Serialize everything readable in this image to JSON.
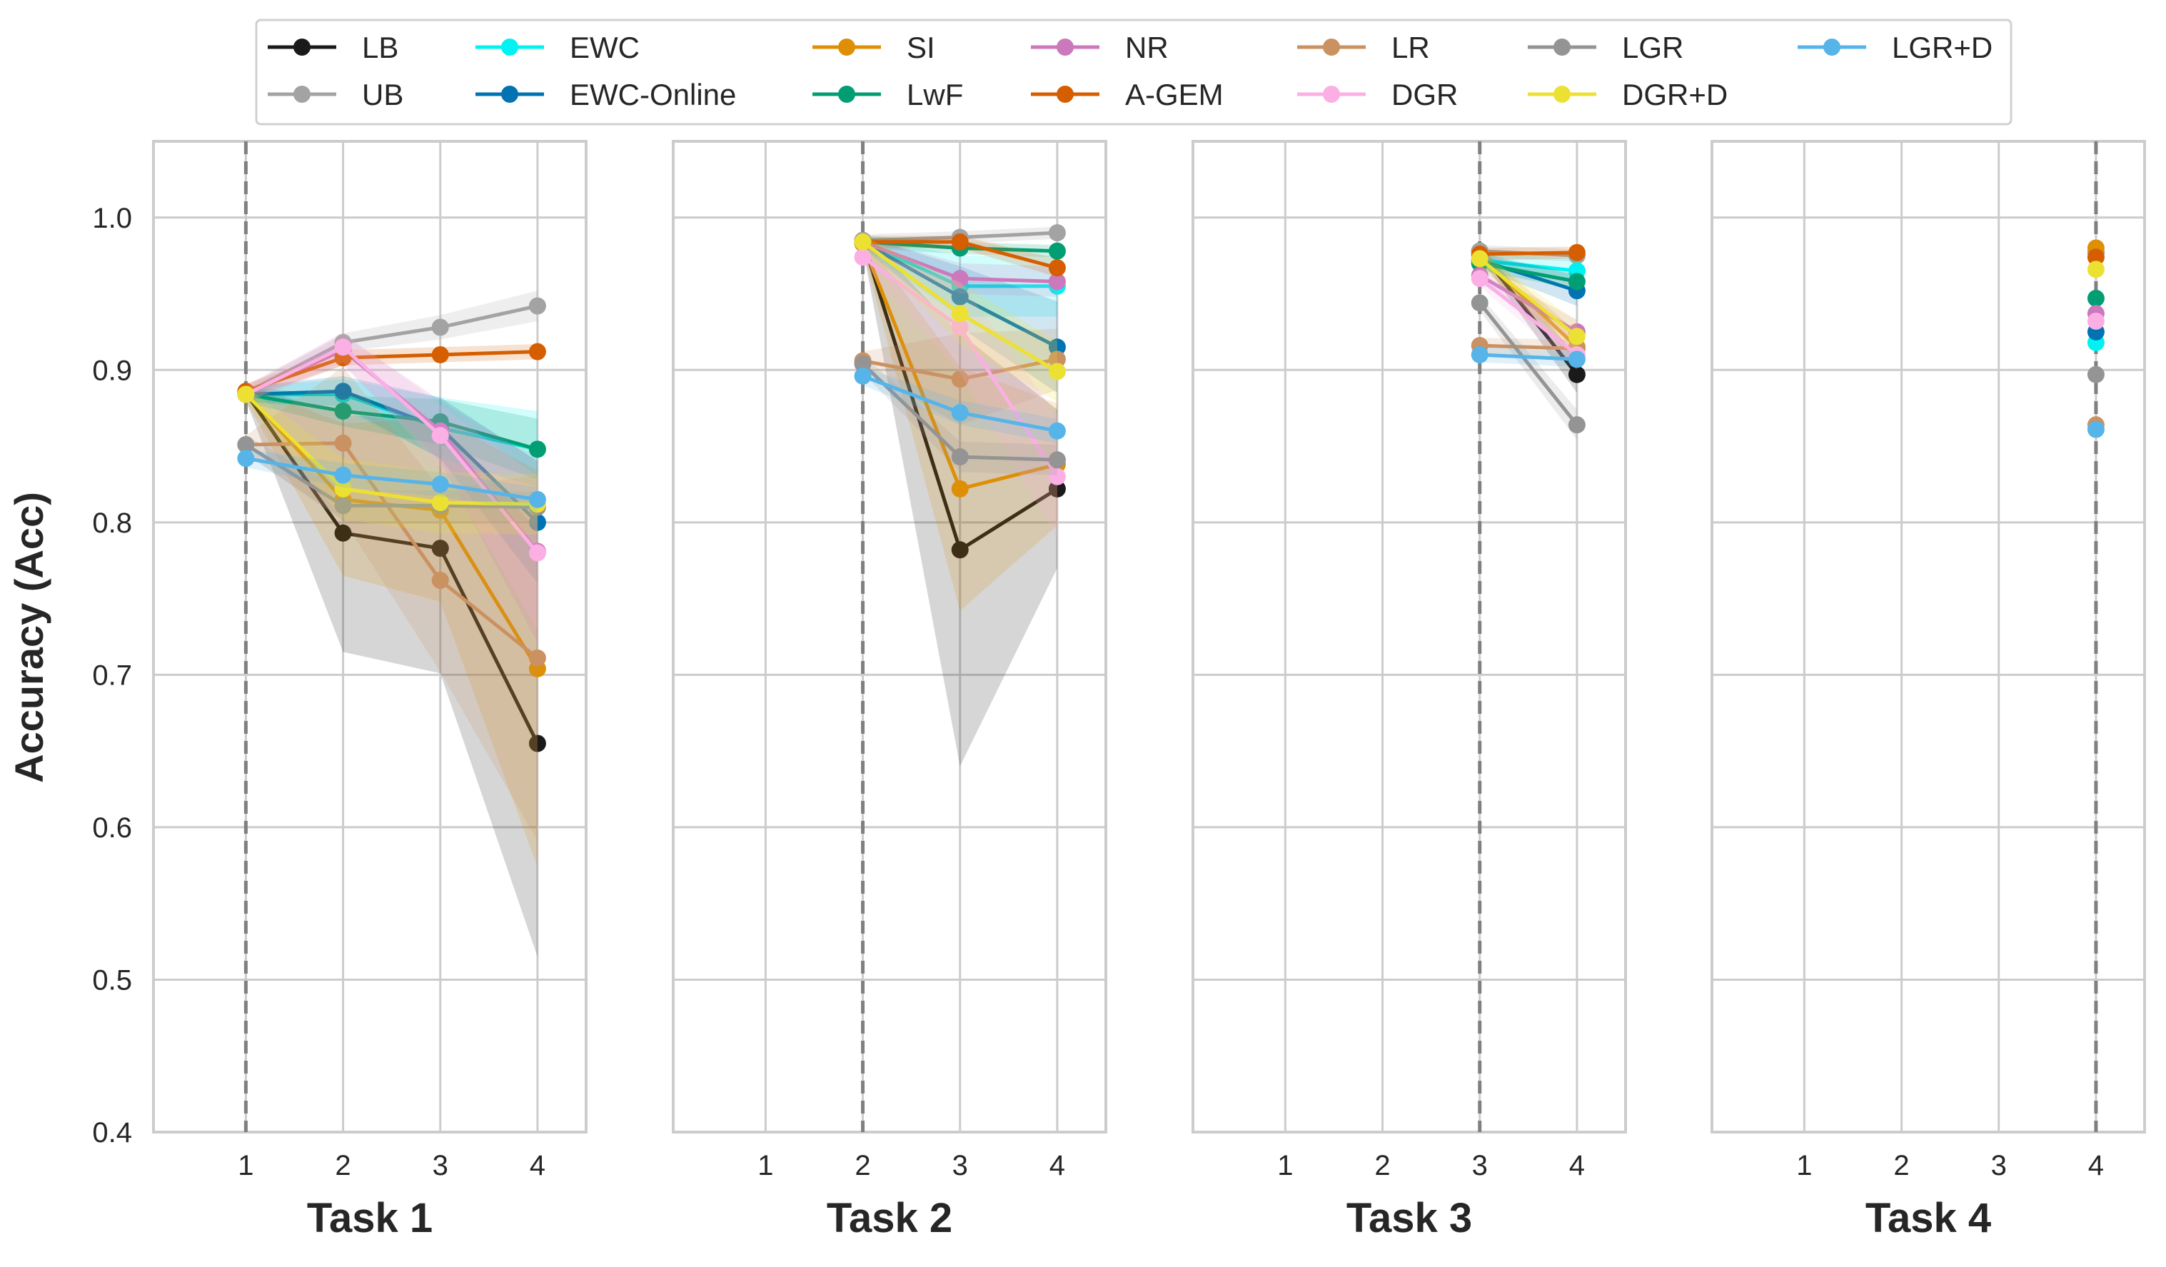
{
  "chart_data": {
    "type": "line",
    "ylabel": "Accuracy (Acc)",
    "ylim": [
      0.4,
      1.05
    ],
    "yticks": [
      0.4,
      0.5,
      0.6,
      0.7,
      0.8,
      0.9,
      1.0
    ],
    "ytick_labels": [
      "0.4",
      "0.5",
      "0.6",
      "0.7",
      "0.8",
      "0.9",
      "1.0"
    ],
    "xticks": [
      1,
      2,
      3,
      4
    ],
    "xtick_labels": [
      "1",
      "2",
      "3",
      "4"
    ],
    "xlim": [
      0.05,
      4.5
    ],
    "grid": true,
    "legend_position": "top-center",
    "legend_columns": 7,
    "panel_titles": [
      "Task 1",
      "Task 2",
      "Task 3",
      "Task 4"
    ],
    "panel_start": [
      1,
      2,
      3,
      4
    ],
    "series": [
      {
        "name": "LB",
        "color": "#1a1a1a",
        "panels": [
          [
            0.885,
            0.793,
            0.783,
            0.655
          ],
          [
            0.985,
            0.782,
            0.822
          ],
          [
            0.978,
            0.897
          ],
          [
            0.977
          ]
        ],
        "bands": [
          [
            0.005,
            0.078,
            0.082,
            0.14
          ],
          [
            0.005,
            0.142,
            0.052
          ],
          [
            0.004,
            0.012
          ],
          [
            0.004
          ]
        ]
      },
      {
        "name": "UB",
        "color": "#a3a3a3",
        "panels": [
          [
            0.885,
            0.918,
            0.928,
            0.942
          ],
          [
            0.985,
            0.987,
            0.99
          ],
          [
            0.978,
            0.975
          ],
          [
            0.977
          ]
        ],
        "bands": [
          [
            0.005,
            0.006,
            0.008,
            0.01
          ],
          [
            0.004,
            0.004,
            0.004
          ],
          [
            0.004,
            0.004
          ],
          [
            0.004
          ]
        ]
      },
      {
        "name": "EWC",
        "color": "#00f2f2",
        "panels": [
          [
            0.884,
            0.884,
            0.862,
            0.848
          ],
          [
            0.984,
            0.955,
            0.955
          ],
          [
            0.972,
            0.965
          ],
          [
            0.918
          ]
        ],
        "bands": [
          [
            0.005,
            0.01,
            0.02,
            0.025
          ],
          [
            0.004,
            0.02,
            0.02
          ],
          [
            0.005,
            0.008
          ],
          [
            0.005
          ]
        ]
      },
      {
        "name": "EWC-Online",
        "color": "#0173b2",
        "panels": [
          [
            0.884,
            0.886,
            0.862,
            0.8
          ],
          [
            0.984,
            0.948,
            0.915
          ],
          [
            0.972,
            0.952
          ],
          [
            0.925
          ]
        ],
        "bands": [
          [
            0.005,
            0.01,
            0.02,
            0.04
          ],
          [
            0.004,
            0.02,
            0.03
          ],
          [
            0.005,
            0.01
          ],
          [
            0.005
          ]
        ]
      },
      {
        "name": "SI",
        "color": "#de8f05",
        "panels": [
          [
            0.885,
            0.815,
            0.808,
            0.704
          ],
          [
            0.983,
            0.822,
            0.838
          ],
          [
            0.975,
            0.915
          ],
          [
            0.98
          ]
        ],
        "bands": [
          [
            0.005,
            0.05,
            0.06,
            0.13
          ],
          [
            0.005,
            0.08,
            0.04
          ],
          [
            0.005,
            0.01
          ],
          [
            0.004
          ]
        ]
      },
      {
        "name": "LwF",
        "color": "#029e73",
        "panels": [
          [
            0.884,
            0.873,
            0.866,
            0.848
          ],
          [
            0.984,
            0.98,
            0.978
          ],
          [
            0.97,
            0.958
          ],
          [
            0.947
          ]
        ],
        "bands": [
          [
            0.005,
            0.01,
            0.015,
            0.02
          ],
          [
            0.004,
            0.004,
            0.004
          ],
          [
            0.005,
            0.005
          ],
          [
            0.004
          ]
        ]
      },
      {
        "name": "NR",
        "color": "#cc78bc",
        "panels": [
          [
            0.884,
            0.913,
            0.86,
            0.781
          ],
          [
            0.984,
            0.96,
            0.958
          ],
          [
            0.962,
            0.925
          ],
          [
            0.937
          ]
        ],
        "bands": [
          [
            0.005,
            0.01,
            0.02,
            0.06
          ],
          [
            0.004,
            0.01,
            0.01
          ],
          [
            0.005,
            0.008
          ],
          [
            0.004
          ]
        ]
      },
      {
        "name": "A-GEM",
        "color": "#d55e00",
        "panels": [
          [
            0.886,
            0.908,
            0.91,
            0.912
          ],
          [
            0.984,
            0.984,
            0.967
          ],
          [
            0.976,
            0.977
          ],
          [
            0.974
          ]
        ],
        "bands": [
          [
            0.005,
            0.005,
            0.005,
            0.005
          ],
          [
            0.004,
            0.004,
            0.006
          ],
          [
            0.004,
            0.004
          ],
          [
            0.004
          ]
        ]
      },
      {
        "name": "LR",
        "color": "#ca9161",
        "panels": [
          [
            0.851,
            0.852,
            0.762,
            0.711
          ],
          [
            0.906,
            0.894,
            0.907
          ],
          [
            0.916,
            0.914
          ],
          [
            0.864
          ]
        ],
        "bands": [
          [
            0.006,
            0.05,
            0.06,
            0.12
          ],
          [
            0.006,
            0.03,
            0.02
          ],
          [
            0.005,
            0.006
          ],
          [
            0.005
          ]
        ]
      },
      {
        "name": "DGR",
        "color": "#fbafe4",
        "panels": [
          [
            0.884,
            0.915,
            0.857,
            0.78
          ],
          [
            0.974,
            0.928,
            0.83
          ],
          [
            0.96,
            0.91
          ],
          [
            0.932
          ]
        ],
        "bands": [
          [
            0.005,
            0.01,
            0.02,
            0.05
          ],
          [
            0.004,
            0.03,
            0.04
          ],
          [
            0.005,
            0.01
          ],
          [
            0.004
          ]
        ]
      },
      {
        "name": "LGR",
        "color": "#949494",
        "panels": [
          [
            0.851,
            0.811,
            0.811,
            0.81
          ],
          [
            0.904,
            0.843,
            0.841
          ],
          [
            0.944,
            0.864
          ],
          [
            0.897
          ]
        ],
        "bands": [
          [
            0.006,
            0.01,
            0.01,
            0.01
          ],
          [
            0.006,
            0.01,
            0.01
          ],
          [
            0.005,
            0.01
          ],
          [
            0.005
          ]
        ]
      },
      {
        "name": "DGR+D",
        "color": "#ece133",
        "panels": [
          [
            0.884,
            0.822,
            0.813,
            0.812
          ],
          [
            0.984,
            0.937,
            0.899
          ],
          [
            0.973,
            0.922
          ],
          [
            0.966
          ]
        ],
        "bands": [
          [
            0.005,
            0.02,
            0.02,
            0.02
          ],
          [
            0.004,
            0.02,
            0.02
          ],
          [
            0.005,
            0.01
          ],
          [
            0.004
          ]
        ]
      },
      {
        "name": "LGR+D",
        "color": "#56b4e9",
        "panels": [
          [
            0.842,
            0.831,
            0.825,
            0.815
          ],
          [
            0.896,
            0.872,
            0.86
          ],
          [
            0.91,
            0.907
          ],
          [
            0.861
          ]
        ],
        "bands": [
          [
            0.006,
            0.008,
            0.008,
            0.008
          ],
          [
            0.006,
            0.008,
            0.008
          ],
          [
            0.005,
            0.005
          ],
          [
            0.005
          ]
        ]
      }
    ]
  }
}
